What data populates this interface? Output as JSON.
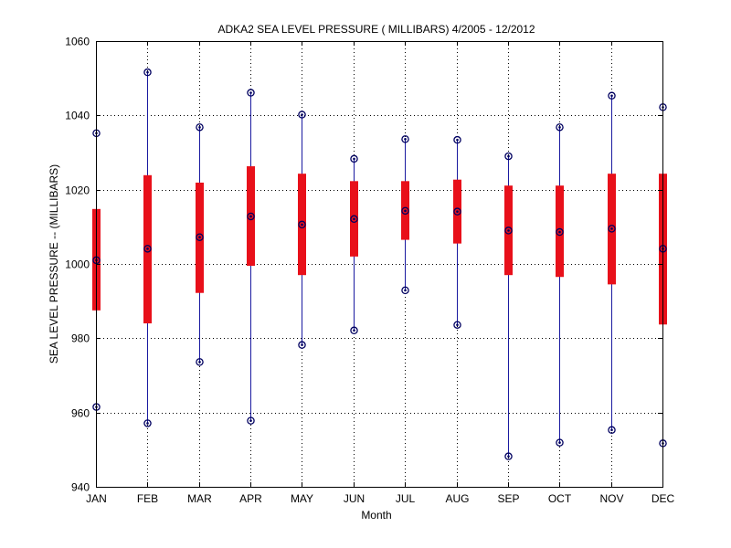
{
  "chart_data": {
    "type": "boxplot",
    "title": "ADKA2  SEA LEVEL PRESSURE ( MILLIBARS) 4/2005 - 12/2012",
    "xlabel": "Month",
    "ylabel": "SEA LEVEL PRESSURE -- (MILLIBARS)",
    "ylim": [
      940,
      1060
    ],
    "yticks": [
      940,
      960,
      980,
      1000,
      1020,
      1040,
      1060
    ],
    "grid": true,
    "categories": [
      "JAN",
      "FEB",
      "MAR",
      "APR",
      "MAY",
      "JUN",
      "JUL",
      "AUG",
      "SEP",
      "OCT",
      "NOV",
      "DEC"
    ],
    "series": [
      {
        "name": "min",
        "values": [
          961.5,
          957.1,
          973.6,
          957.8,
          978.2,
          982.1,
          992.9,
          983.6,
          948.2,
          951.9,
          955.3,
          951.7
        ]
      },
      {
        "name": "q1",
        "values": [
          987.5,
          984.0,
          992.2,
          999.5,
          997.0,
          1002.0,
          1006.5,
          1005.5,
          997.0,
          996.5,
          994.5,
          983.7
        ]
      },
      {
        "name": "median",
        "values": [
          1001.0,
          1004.1,
          1007.2,
          1012.8,
          1010.6,
          1012.1,
          1014.3,
          1014.1,
          1009.0,
          1008.6,
          1009.5,
          1004.1
        ]
      },
      {
        "name": "q3",
        "values": [
          1014.8,
          1023.9,
          1021.9,
          1026.3,
          1024.3,
          1022.3,
          1022.3,
          1022.7,
          1021.1,
          1021.1,
          1024.3,
          1024.3
        ]
      },
      {
        "name": "max",
        "values": [
          1035.2,
          1051.6,
          1036.8,
          1046.1,
          1040.2,
          1028.3,
          1033.6,
          1033.4,
          1029.0,
          1036.8,
          1045.3,
          1042.2
        ]
      }
    ],
    "colors": {
      "box": "#e8101a",
      "whisker": "#1a1aa0",
      "marker": "#000060",
      "grid": "#000000"
    }
  }
}
